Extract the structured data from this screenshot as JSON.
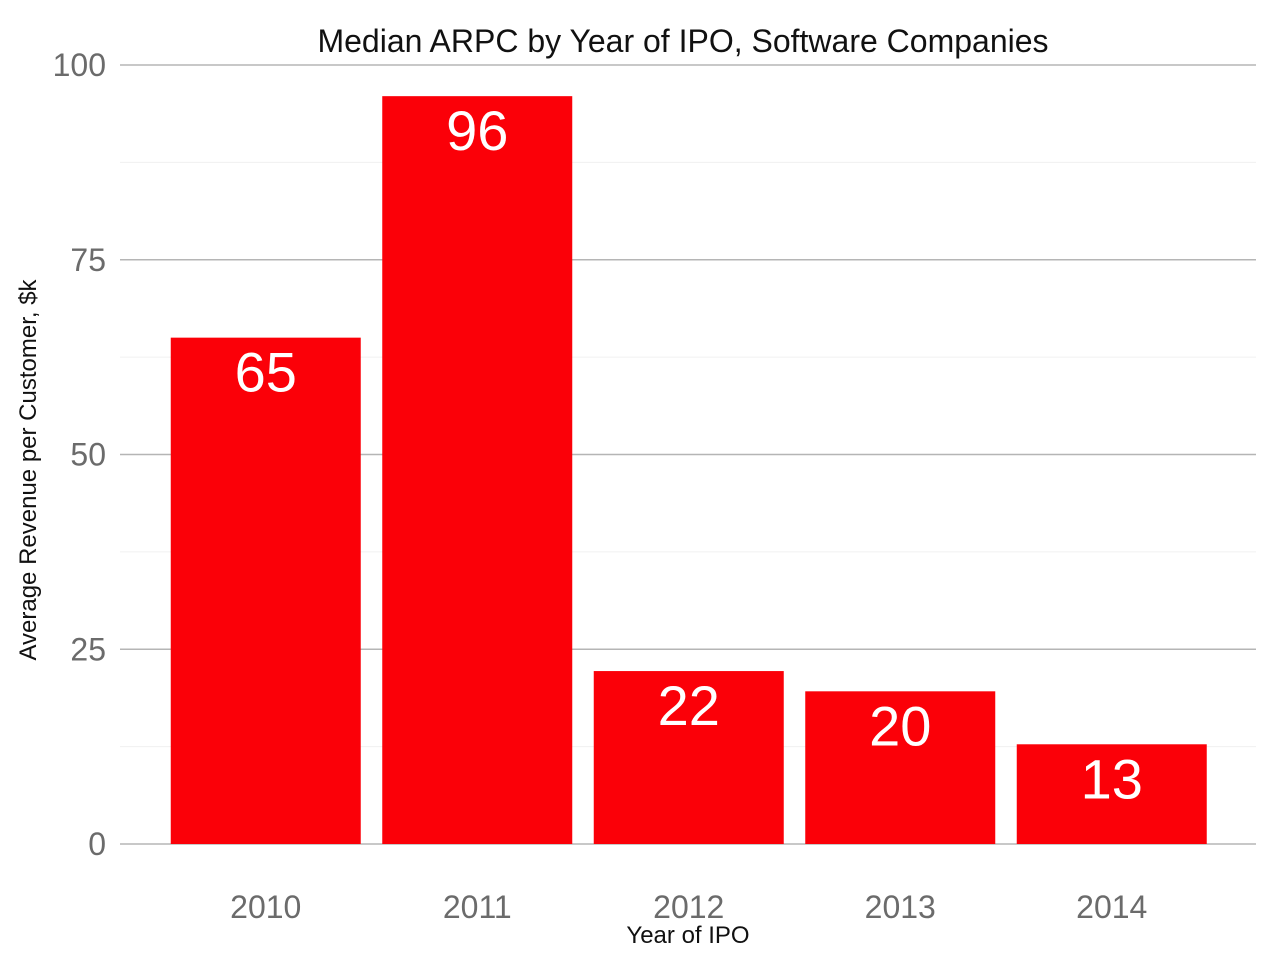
{
  "chart_data": {
    "type": "bar",
    "title": "Median ARPC by Year of IPO, Software Companies",
    "xlabel": "Year of IPO",
    "ylabel": "Average Revenue per Customer, $k",
    "categories": [
      "2010",
      "2011",
      "2012",
      "2013",
      "2014"
    ],
    "values": [
      65,
      96,
      22.2,
      19.6,
      12.8
    ],
    "data_labels": [
      "65",
      "96",
      "22",
      "20",
      "13"
    ],
    "ylim": [
      0,
      100
    ],
    "yticks": [
      0,
      25,
      50,
      75,
      100
    ],
    "grid": true,
    "legend": "none",
    "bar_color": "#fb0008",
    "label_color": "#ffffff"
  }
}
